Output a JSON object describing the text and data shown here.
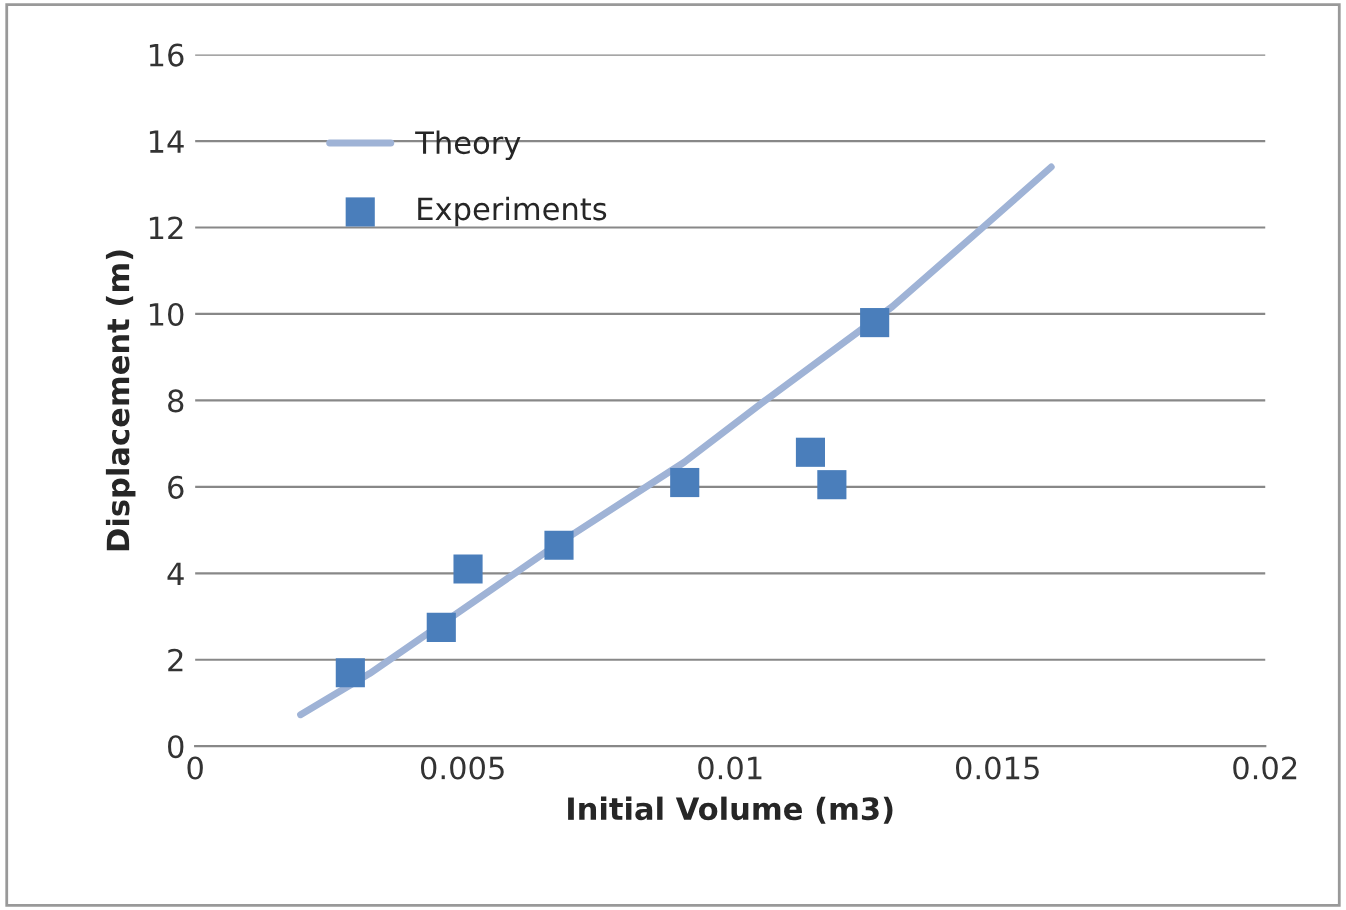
{
  "chart_data": {
    "type": "scatter",
    "xlabel": "Initial Volume (m3)",
    "ylabel": "Displacement (m)",
    "xlim": [
      0,
      0.02
    ],
    "xticks": [
      0,
      0.005,
      0.01,
      0.015,
      0.02
    ],
    "ylim": [
      0,
      16
    ],
    "yticks": [
      0,
      2,
      4,
      6,
      8,
      10,
      12,
      14,
      16
    ],
    "grid": "y",
    "legend": "top left",
    "series": [
      {
        "name": "Theory",
        "type": "line",
        "color": "#9fb3d6",
        "marker": "none",
        "x": [
          0.00197,
          0.00326,
          0.00668,
          0.00914,
          0.0107,
          0.01303,
          0.01472,
          0.016
        ],
        "values": [
          0.73,
          1.68,
          4.6,
          6.57,
          8.04,
          10.17,
          12.0,
          13.4
        ]
      },
      {
        "name": "Experiments",
        "color": "#4a7ebb",
        "marker": "square",
        "x": [
          0.0029,
          0.0046,
          0.0051,
          0.0068,
          0.00915,
          0.0115,
          0.0119,
          0.0127
        ],
        "values": [
          1.7,
          2.75,
          4.1,
          4.65,
          6.1,
          6.8,
          6.05,
          9.8
        ]
      }
    ]
  }
}
